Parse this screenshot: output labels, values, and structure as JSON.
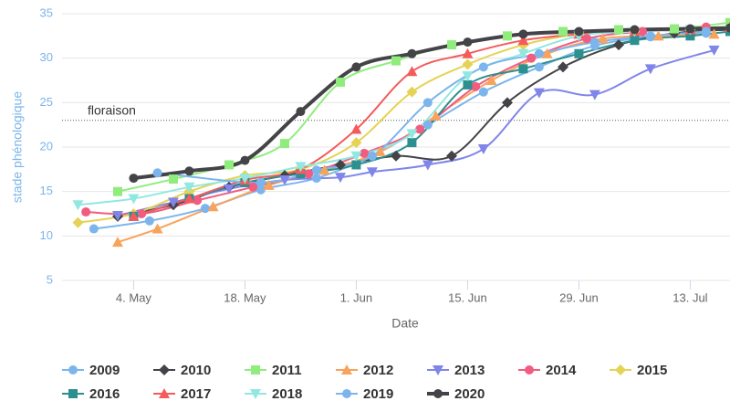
{
  "chart_data": {
    "type": "line",
    "x_label": "Date",
    "y_label": "stade phénologique",
    "xlim": [
      115,
      199
    ],
    "ylim": [
      5,
      35
    ],
    "xticks": [
      {
        "value": 124,
        "label": "4. May"
      },
      {
        "value": 138,
        "label": "18. May"
      },
      {
        "value": 152,
        "label": "1. Jun"
      },
      {
        "value": 166,
        "label": "15. Jun"
      },
      {
        "value": 180,
        "label": "29. Jun"
      },
      {
        "value": 194,
        "label": "13. Jul"
      }
    ],
    "yticks": [
      5,
      10,
      15,
      20,
      25,
      30,
      35
    ],
    "grid": true,
    "plot_lines": [
      {
        "value": 23,
        "label": "floraison"
      }
    ],
    "legend": "bottom",
    "series": [
      {
        "name": "2009",
        "color": "#7cb5ec",
        "symbol": "circle",
        "line_width": 2,
        "x": [
          119,
          126,
          133,
          140,
          147,
          154,
          161,
          168,
          175,
          182,
          189,
          196
        ],
        "values": [
          10.8,
          11.7,
          13.1,
          15.2,
          16.5,
          19,
          22.5,
          26.2,
          29,
          31.4,
          32.4,
          32.8
        ]
      },
      {
        "name": "2010",
        "color": "#434348",
        "symbol": "diamond",
        "line_width": 2,
        "x": [
          122,
          129,
          136,
          143,
          150,
          157,
          164,
          171,
          178,
          185,
          192,
          199
        ],
        "values": [
          12.2,
          13.5,
          15.5,
          16.8,
          18,
          19,
          19,
          25,
          29,
          31.5,
          32.8,
          33.2
        ]
      },
      {
        "name": "2011",
        "color": "#90ed7d",
        "symbol": "square",
        "line_width": 2,
        "x": [
          122,
          129,
          136,
          143,
          150,
          157,
          164,
          171,
          178,
          185,
          192,
          199
        ],
        "values": [
          15,
          16.4,
          18,
          20.4,
          27.3,
          29.7,
          31.5,
          32.5,
          33,
          33.2,
          33.3,
          34
        ]
      },
      {
        "name": "2012",
        "color": "#f7a35c",
        "symbol": "triangle",
        "line_width": 2,
        "x": [
          122,
          127,
          134,
          141,
          148,
          155,
          162,
          169,
          176,
          183,
          190,
          197
        ],
        "values": [
          9.3,
          10.8,
          13.3,
          15.7,
          17.4,
          19.5,
          23.5,
          27.5,
          30.5,
          32.2,
          32.5,
          32.7
        ]
      },
      {
        "name": "2013",
        "color": "#8085e9",
        "symbol": "triangle-down",
        "line_width": 2,
        "x": [
          122,
          129,
          136,
          143,
          150,
          154,
          161,
          168,
          175,
          182,
          189,
          197
        ],
        "values": [
          12.3,
          13.8,
          15.3,
          16.3,
          16.6,
          17.2,
          18,
          19.8,
          26.1,
          25.9,
          28.8,
          30.9
        ]
      },
      {
        "name": "2014",
        "color": "#f15c80",
        "symbol": "circle",
        "line_width": 2,
        "x": [
          118,
          125,
          132,
          139,
          146,
          153,
          160,
          167,
          174,
          181,
          188,
          196
        ],
        "values": [
          12.7,
          12.5,
          14,
          15.5,
          17,
          19.3,
          22,
          26.8,
          30,
          32.2,
          33,
          33.5
        ]
      },
      {
        "name": "2015",
        "color": "#e4d354",
        "symbol": "diamond",
        "line_width": 2,
        "x": [
          117,
          124,
          131,
          138,
          145,
          152,
          159,
          166,
          173,
          180,
          187,
          194
        ],
        "values": [
          11.5,
          12.5,
          15,
          16.8,
          17.5,
          20.5,
          26.2,
          29.3,
          31.5,
          32.7,
          33,
          33.2
        ]
      },
      {
        "name": "2016",
        "color": "#2b908f",
        "symbol": "square",
        "line_width": 2,
        "x": [
          124,
          131,
          138,
          145,
          152,
          159,
          166,
          173,
          180,
          187,
          194,
          199
        ],
        "values": [
          12.2,
          14.2,
          16,
          17,
          18,
          20.5,
          27,
          28.8,
          30.5,
          32,
          32.5,
          33
        ]
      },
      {
        "name": "2017",
        "color": "#f45b5b",
        "symbol": "triangle",
        "line_width": 2,
        "x": [
          124,
          131,
          138,
          145,
          152,
          159,
          166,
          173,
          180,
          187,
          194,
          199
        ],
        "values": [
          12.2,
          14.2,
          16.3,
          17.5,
          22,
          28.5,
          30.5,
          32,
          32.7,
          33,
          33.2,
          33.5
        ]
      },
      {
        "name": "2018",
        "color": "#91e8e1",
        "symbol": "triangle-down",
        "line_width": 2,
        "x": [
          117,
          124,
          131,
          138,
          145,
          152,
          159,
          166,
          173,
          180,
          187,
          194
        ],
        "values": [
          13.5,
          14.2,
          15.5,
          16.5,
          17.8,
          19,
          21.5,
          28,
          30.5,
          32.5,
          33,
          33.2
        ]
      },
      {
        "name": "2019",
        "color": "#7cb5ec",
        "symbol": "circle",
        "line_width": 2,
        "x": [
          127,
          140,
          147,
          154,
          161,
          168,
          175,
          182,
          189,
          196
        ],
        "values": [
          17.1,
          16,
          17.4,
          19,
          25,
          29,
          30.5,
          31.8,
          32.5,
          33
        ]
      },
      {
        "name": "2020",
        "color": "#434348",
        "symbol": "circle",
        "line_width": 4,
        "x": [
          124,
          131,
          138,
          145,
          152,
          159,
          166,
          173,
          180,
          187,
          194,
          199
        ],
        "values": [
          16.5,
          17.3,
          18.5,
          24,
          29,
          30.5,
          31.8,
          32.7,
          33,
          33.2,
          33.3,
          33.4
        ]
      }
    ]
  }
}
